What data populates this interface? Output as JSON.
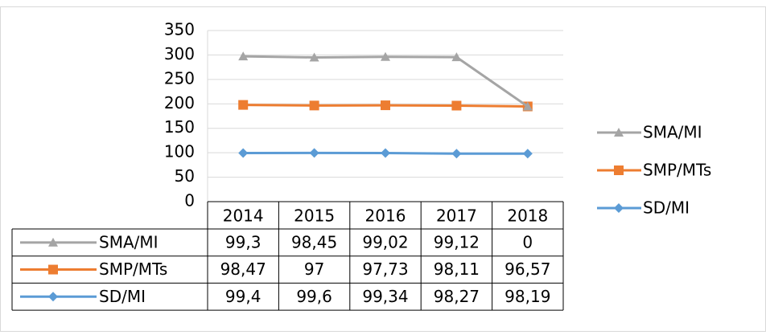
{
  "chart_data": {
    "type": "line",
    "stacked": true,
    "categories": [
      "2014",
      "2015",
      "2016",
      "2017",
      "2018"
    ],
    "series": [
      {
        "name": "SMA/MI",
        "color": "#a5a5a5",
        "marker": "triangle",
        "values": [
          99.3,
          98.45,
          99.02,
          99.12,
          0
        ],
        "value_labels": [
          "99,3",
          "98,45",
          "99,02",
          "99,12",
          "0"
        ]
      },
      {
        "name": "SMP/MTs",
        "color": "#ed7d31",
        "marker": "square",
        "values": [
          98.47,
          97,
          97.73,
          98.11,
          96.57
        ],
        "value_labels": [
          "98,47",
          "97",
          "97,73",
          "98,11",
          "96,57"
        ]
      },
      {
        "name": "SD/MI",
        "color": "#5b9bd5",
        "marker": "diamond",
        "values": [
          99.4,
          99.6,
          99.34,
          98.27,
          98.19
        ],
        "value_labels": [
          "99,4",
          "99,6",
          "99,34",
          "98,27",
          "98,19"
        ]
      }
    ],
    "ylim": [
      0,
      350
    ],
    "yticks": [
      0,
      50,
      100,
      150,
      200,
      250,
      300,
      350
    ],
    "grid": true,
    "legend": "right",
    "data_table": true
  }
}
